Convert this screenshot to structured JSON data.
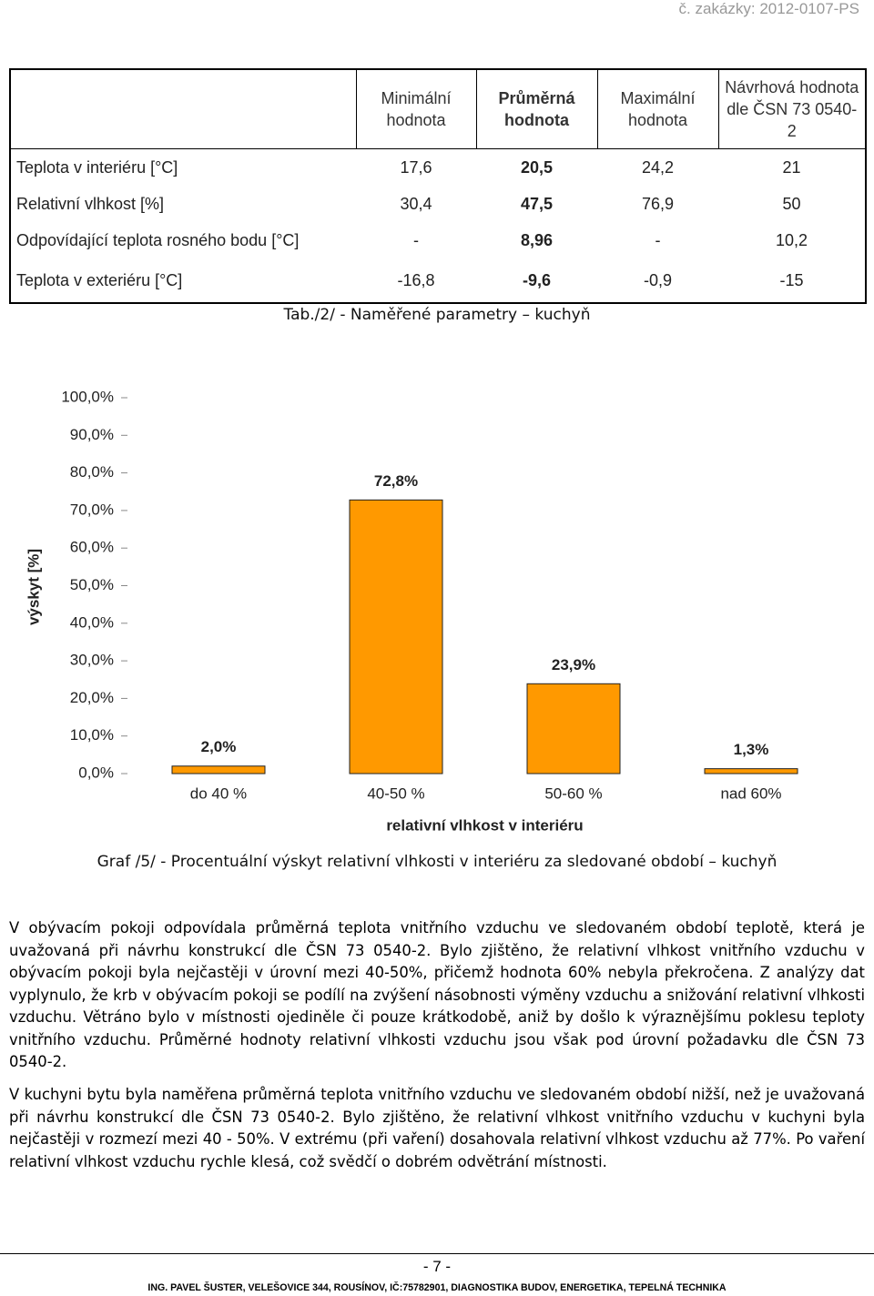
{
  "header": {
    "order": "č. zakázky: 2012-0107-PS"
  },
  "table": {
    "columns": [
      "Minimální hodnota",
      "Průměrná hodnota",
      "Maximální hodnota",
      "Návrhová hodnota dle ČSN 73 0540-2"
    ],
    "rows": [
      {
        "label": "Teplota v interiéru [°C]",
        "values": [
          "17,6",
          "20,5",
          "24,2",
          "21"
        ]
      },
      {
        "label": "Relativní vlhkost [%]",
        "values": [
          "30,4",
          "47,5",
          "76,9",
          "50"
        ]
      },
      {
        "label": "Odpovídající teplota rosného bodu [°C]",
        "values": [
          "-",
          "8,96",
          "-",
          "10,2"
        ]
      },
      {
        "label": "Teplota v exteriéru [°C]",
        "values": [
          "-16,8",
          "-9,6",
          "-0,9",
          "-15"
        ]
      }
    ],
    "caption": "Tab./2/ - Naměřené parametry – kuchyň"
  },
  "chart_data": {
    "type": "bar",
    "title": "Graf /5/ - Procentuální výskyt relativní vlhkosti v interiéru za sledované období – kuchyň",
    "x_label": "relativní vlhkost v interiéru",
    "y_label": "výskyt [%]",
    "categories": [
      "do 40 %",
      "40-50 %",
      "50-60 %",
      "nad 60%"
    ],
    "values": [
      2.0,
      72.8,
      23.9,
      1.3
    ],
    "value_labels": [
      "2,0%",
      "72,8%",
      "23,9%",
      "1,3%"
    ],
    "color": "#ff9900",
    "ylim": [
      0,
      100
    ],
    "yticks": [
      {
        "value": 0,
        "label": "0,0%"
      },
      {
        "value": 10,
        "label": "10,0%"
      },
      {
        "value": 20,
        "label": "20,0%"
      },
      {
        "value": 30,
        "label": "30,0%"
      },
      {
        "value": 40,
        "label": "40,0%"
      },
      {
        "value": 50,
        "label": "50,0%"
      },
      {
        "value": 60,
        "label": "60,0%"
      },
      {
        "value": 70,
        "label": "70,0%"
      },
      {
        "value": 80,
        "label": "80,0%"
      },
      {
        "value": 90,
        "label": "90,0%"
      },
      {
        "value": 100,
        "label": "100,0%"
      }
    ],
    "grid": false
  },
  "paragraphs": [
    "V obývacím pokoji odpovídala průměrná teplota vnitřního vzduchu ve sledovaném období teplotě, která je uvažovaná při návrhu konstrukcí dle ČSN 73 0540-2. Bylo zjištěno, že relativní vlhkost vnitřního vzduchu v obývacím pokoji byla nejčastěji v úrovní mezi 40-50%, přičemž hodnota 60% nebyla překročena. Z analýzy dat vyplynulo, že krb v obývacím pokoji se podílí na zvýšení násobnosti výměny vzduchu a snižování relativní vlhkosti vzduchu. Větráno bylo v místnosti ojediněle či pouze krátkodobě, aniž by došlo k výraznějšímu poklesu teploty vnitřního vzduchu. Průměrné hodnoty relativní vlhkosti vzduchu jsou však pod úrovní požadavku dle ČSN 73 0540-2.",
    "V kuchyni bytu byla naměřena průměrná teplota vnitřního vzduchu ve sledovaném období nižší, než je uvažovaná při návrhu konstrukcí dle ČSN 73 0540-2. Bylo zjištěno, že relativní vlhkost vnitřního vzduchu v kuchyni byla nejčastěji v rozmezí mezi 40 - 50%. V extrému (při vaření) dosahovala relativní vlhkost vzduchu až 77%. Po vaření relativní vlhkost vzduchu rychle klesá, což svědčí o dobrém odvětrání místnosti."
  ],
  "footer": {
    "page": "- 7 -",
    "company": "ING. PAVEL ŠUSTER, VELEŠOVICE 344, ROUSÍNOV, IČ:75782901, DIAGNOSTIKA BUDOV, ENERGETIKA, TEPELNÁ TECHNIKA"
  }
}
